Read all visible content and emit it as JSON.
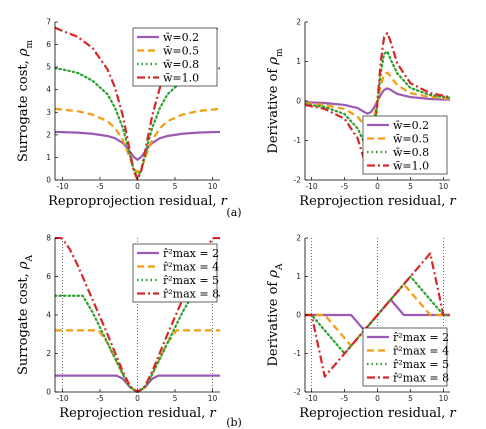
{
  "colors": {
    "series": [
      "#9b59b6",
      "#f39c12",
      "#2ca02c",
      "#d62728"
    ],
    "vline": "#444444",
    "axis": "#000000"
  },
  "captions": [
    "(a)",
    "(b)"
  ],
  "chart_data": [
    {
      "type": "line",
      "ylabel_text": "Surrogate cost, ",
      "ylabel_sym": "ρ",
      "ylabel_sub": "m",
      "xlabel_text": "Reproprojection residual, ",
      "xlabel_sym": "r",
      "xlim": [
        -11,
        11
      ],
      "ylim": [
        0,
        7
      ],
      "xticks": [
        -10,
        -5,
        0,
        5,
        10
      ],
      "yticks": [
        0,
        1,
        2,
        3,
        4,
        5,
        6,
        7
      ],
      "vlines": [],
      "legend_position": "top-right",
      "legend": [
        "w̄=0.2",
        "w̄=0.5",
        "w̄=0.8",
        "w̄=1.0"
      ],
      "series": [
        {
          "name": "w̄=0.2",
          "style": "solid",
          "x": [
            -11,
            -10,
            -8,
            -6,
            -4,
            -3,
            -2,
            -1.5,
            -1,
            -0.5,
            0,
            0.5,
            1,
            1.5,
            2,
            3,
            4,
            6,
            8,
            10,
            11
          ],
          "y": [
            2.13,
            2.12,
            2.1,
            2.05,
            1.95,
            1.85,
            1.65,
            1.48,
            1.25,
            1.02,
            0.9,
            1.02,
            1.25,
            1.48,
            1.65,
            1.85,
            1.95,
            2.05,
            2.1,
            2.12,
            2.13
          ]
        },
        {
          "name": "w̄=0.5",
          "style": "dash",
          "x": [
            -11,
            -10,
            -8,
            -6,
            -4,
            -3,
            -2,
            -1.5,
            -1,
            -0.5,
            0,
            0.5,
            1,
            1.5,
            2,
            3,
            4,
            6,
            8,
            10,
            11
          ],
          "y": [
            3.15,
            3.12,
            3.05,
            2.9,
            2.6,
            2.3,
            1.8,
            1.4,
            0.95,
            0.5,
            0.35,
            0.5,
            0.95,
            1.4,
            1.8,
            2.3,
            2.6,
            2.9,
            3.05,
            3.12,
            3.15
          ]
        },
        {
          "name": "w̄=0.8",
          "style": "dot",
          "x": [
            -11,
            -10,
            -8,
            -6,
            -4,
            -3,
            -2,
            -1.5,
            -1,
            -0.5,
            0,
            0.5,
            1,
            1.5,
            2,
            3,
            4,
            6,
            8,
            10,
            11
          ],
          "y": [
            4.95,
            4.9,
            4.75,
            4.4,
            3.8,
            3.2,
            2.35,
            1.75,
            1.1,
            0.45,
            0.12,
            0.45,
            1.1,
            1.75,
            2.35,
            3.2,
            3.8,
            4.4,
            4.75,
            4.9,
            4.95
          ]
        },
        {
          "name": "w̄=1.0",
          "style": "dashdot",
          "x": [
            -11,
            -10,
            -8,
            -6,
            -4,
            -3,
            -2,
            -1.5,
            -1,
            -0.5,
            0,
            0.5,
            1,
            1.5,
            2,
            3,
            4,
            6,
            8,
            10,
            11
          ],
          "y": [
            6.75,
            6.6,
            6.35,
            5.85,
            4.9,
            4.1,
            2.9,
            2.1,
            1.25,
            0.4,
            0.02,
            0.4,
            1.25,
            2.1,
            2.9,
            4.1,
            4.9,
            5.85,
            6.35,
            6.6,
            6.75
          ]
        }
      ]
    },
    {
      "type": "line",
      "ylabel_text": "Derivative of ",
      "ylabel_sym": "ρ",
      "ylabel_sub": "m",
      "xlabel_text": "Reprojection residual, ",
      "xlabel_sym": "r",
      "xlim": [
        -11,
        11
      ],
      "ylim": [
        -2,
        2
      ],
      "xticks": [
        -10,
        -5,
        0,
        5,
        10
      ],
      "yticks": [
        -2,
        -1,
        0,
        1,
        2
      ],
      "vlines": [],
      "legend_position": "bottom-right",
      "legend": [
        "w̄=0.2",
        "w̄=0.5",
        "w̄=0.8",
        "w̄=1.0"
      ],
      "series": [
        {
          "name": "w̄=0.2",
          "style": "solid",
          "x": [
            -11,
            -8,
            -5,
            -3,
            -2,
            -1.5,
            -1,
            -0.5,
            0,
            0.5,
            1,
            1.5,
            2,
            3,
            5,
            8,
            11
          ],
          "y": [
            -0.03,
            -0.05,
            -0.1,
            -0.18,
            -0.28,
            -0.32,
            -0.28,
            -0.16,
            0,
            0.16,
            0.28,
            0.32,
            0.28,
            0.18,
            0.1,
            0.05,
            0.03
          ]
        },
        {
          "name": "w̄=0.5",
          "style": "dash",
          "x": [
            -11,
            -8,
            -5,
            -3,
            -2,
            -1.5,
            -1,
            -0.5,
            0,
            0.5,
            1,
            1.5,
            2,
            3,
            5,
            8,
            11
          ],
          "y": [
            -0.05,
            -0.1,
            -0.2,
            -0.4,
            -0.62,
            -0.72,
            -0.68,
            -0.4,
            0,
            0.4,
            0.68,
            0.72,
            0.62,
            0.4,
            0.2,
            0.1,
            0.05
          ]
        },
        {
          "name": "w̄=0.8",
          "style": "dot",
          "x": [
            -11,
            -8,
            -5,
            -3,
            -2,
            -1.5,
            -1,
            -0.5,
            0,
            0.5,
            1,
            1.5,
            2,
            3,
            5,
            8,
            11
          ],
          "y": [
            -0.08,
            -0.15,
            -0.33,
            -0.7,
            -1.05,
            -1.25,
            -1.2,
            -0.72,
            0,
            0.72,
            1.2,
            1.25,
            1.05,
            0.7,
            0.33,
            0.15,
            0.08
          ]
        },
        {
          "name": "w̄=1.0",
          "style": "dashdot",
          "x": [
            -11,
            -8,
            -5,
            -3,
            -2,
            -1.5,
            -1,
            -0.5,
            0,
            0.5,
            1,
            1.5,
            2,
            3,
            5,
            8,
            11
          ],
          "y": [
            -0.1,
            -0.2,
            -0.45,
            -0.95,
            -1.5,
            -1.72,
            -1.62,
            -1.0,
            0,
            1.0,
            1.62,
            1.72,
            1.5,
            0.95,
            0.45,
            0.2,
            0.1
          ]
        }
      ]
    },
    {
      "type": "line",
      "ylabel_text": "Surrogate cost, ",
      "ylabel_sym": "ρ",
      "ylabel_sub": "A",
      "xlabel_text": "Reprojection residual, ",
      "xlabel_sym": "r",
      "xlim": [
        -11,
        11
      ],
      "ylim": [
        0,
        8
      ],
      "xticks": [
        -10,
        -5,
        0,
        5,
        10
      ],
      "yticks": [
        0,
        2,
        4,
        6,
        8
      ],
      "vlines": [
        -10,
        0,
        10
      ],
      "legend_position": "top-right",
      "legend": [
        "r̂²max = 2",
        "r̂²max = 4",
        "r̂²max = 5",
        "r̂²max = 8"
      ],
      "series": [
        {
          "name": "r̂²max = 2",
          "style": "solid",
          "x": [
            -11,
            -10,
            -8,
            -6,
            -4,
            -2.8,
            -2,
            -1,
            0,
            1,
            2,
            2.8,
            4,
            6,
            8,
            10,
            11
          ],
          "y": [
            0.85,
            0.85,
            0.85,
            0.85,
            0.85,
            0.85,
            0.7,
            0.25,
            0,
            0.25,
            0.7,
            0.85,
            0.85,
            0.85,
            0.85,
            0.85,
            0.85
          ]
        },
        {
          "name": "r̂²max = 4",
          "style": "dash",
          "x": [
            -11,
            -10,
            -8,
            -6,
            -5.2,
            -4,
            -3,
            -2,
            -1,
            0,
            1,
            2,
            3,
            4,
            5.2,
            6,
            8,
            10,
            11
          ],
          "y": [
            3.2,
            3.2,
            3.2,
            3.2,
            3.2,
            2.55,
            1.75,
            0.95,
            0.25,
            0,
            0.25,
            0.95,
            1.75,
            2.55,
            3.2,
            3.2,
            3.2,
            3.2,
            3.2
          ]
        },
        {
          "name": "r̂²max = 5",
          "style": "dot",
          "x": [
            -11,
            -10,
            -8,
            -7.3,
            -6,
            -5,
            -4,
            -3,
            -2,
            -1,
            0,
            1,
            2,
            3,
            4,
            5,
            6,
            7.3,
            8,
            10,
            11
          ],
          "y": [
            5.0,
            5.0,
            5.0,
            5.0,
            4.15,
            3.35,
            2.55,
            1.75,
            0.95,
            0.25,
            0,
            0.25,
            0.95,
            1.75,
            2.55,
            3.35,
            4.15,
            5.0,
            5.0,
            5.0,
            5.0
          ]
        },
        {
          "name": "r̂²max = 8",
          "style": "dashdot",
          "x": [
            -11,
            -10.2,
            -10,
            -9,
            -8,
            -7,
            -6,
            -5,
            -4,
            -3,
            -2,
            -1,
            0,
            1,
            2,
            3,
            4,
            5,
            6,
            7,
            8,
            9,
            10,
            10.2,
            11
          ],
          "y": [
            8.0,
            8.0,
            7.95,
            7.4,
            6.6,
            5.7,
            4.8,
            3.9,
            3.0,
            2.05,
            1.1,
            0.3,
            0,
            0.3,
            1.1,
            2.05,
            3.0,
            3.9,
            4.8,
            5.7,
            6.6,
            7.4,
            7.95,
            8.0,
            8.0
          ]
        }
      ]
    },
    {
      "type": "line",
      "ylabel_text": "Derivative of ",
      "ylabel_sym": "ρ",
      "ylabel_sub": "A",
      "xlabel_text": "Reprojection residual, ",
      "xlabel_sym": "r",
      "xlim": [
        -11,
        11
      ],
      "ylim": [
        -2,
        2
      ],
      "xticks": [
        -10,
        -5,
        0,
        5,
        10
      ],
      "yticks": [
        -2,
        -1,
        0,
        1,
        2
      ],
      "vlines": [
        -10,
        0,
        10
      ],
      "legend_position": "bottom-right",
      "legend": [
        "r̂²max = 2",
        "r̂²max = 4",
        "r̂²max = 5",
        "r̂²max = 8"
      ],
      "series": [
        {
          "name": "r̂²max = 2",
          "style": "solid",
          "x": [
            -11,
            -4,
            -2,
            0,
            2,
            4,
            11
          ],
          "y": [
            0,
            0,
            -0.4,
            0,
            0.4,
            0,
            0
          ]
        },
        {
          "name": "r̂²max = 4",
          "style": "dash",
          "x": [
            -11,
            -8,
            -4,
            0,
            4,
            8,
            11
          ],
          "y": [
            0,
            0,
            -0.8,
            0,
            0.8,
            0,
            0
          ]
        },
        {
          "name": "r̂²max = 5",
          "style": "dot",
          "x": [
            -11,
            -10,
            -5,
            0,
            5,
            10,
            11
          ],
          "y": [
            0,
            0,
            -1.0,
            0,
            1.0,
            0,
            0
          ]
        },
        {
          "name": "r̂²max = 8",
          "style": "dashdot",
          "x": [
            -11,
            -10,
            -8,
            0,
            8,
            10,
            11
          ],
          "y": [
            0,
            0,
            -1.6,
            0,
            1.6,
            0,
            0
          ]
        }
      ]
    }
  ]
}
